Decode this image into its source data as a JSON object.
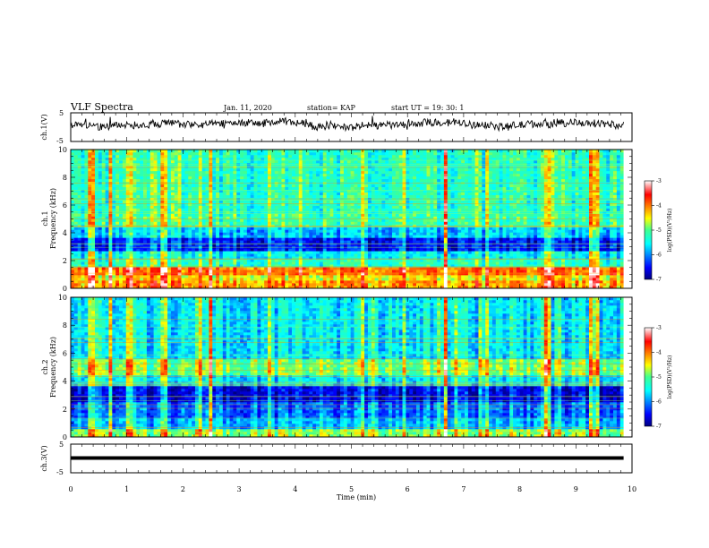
{
  "header": {
    "title": "VLF Spectra",
    "date": "Jan. 11, 2020",
    "station": "station= KAP",
    "start": "start UT =  19: 30: 1"
  },
  "chart_data": [
    {
      "type": "line",
      "name": "ch1-waveform",
      "ylabel": "ch.1(V)",
      "xlim": [
        0,
        10
      ],
      "ylim": [
        -5,
        5
      ],
      "yticks": [
        "5",
        "-5"
      ],
      "x_end": 9.85,
      "description_level": "noisy broadband waveform, approx. 0 to 2 V mean, peaks near 5 V"
    },
    {
      "type": "heatmap",
      "name": "ch1-spectrogram",
      "ylabel": "Frequency (kHz)",
      "ylabel_prefix": "ch.1",
      "xlim": [
        0,
        9.85
      ],
      "ylim": [
        0,
        10
      ],
      "yticks": [
        "0",
        "2",
        "4",
        "6",
        "8",
        "10"
      ],
      "colorbar": {
        "label": "log(PSD)(V²/Hz)",
        "range": [
          -7,
          -3
        ],
        "ticks": [
          "-3",
          "-4",
          "-5",
          "-6",
          "-7"
        ]
      },
      "bands": [
        {
          "f": [
            0,
            0.5
          ],
          "level": -4.2
        },
        {
          "f": [
            0.5,
            1.0
          ],
          "level": -4.5
        },
        {
          "f": [
            1.0,
            1.6
          ],
          "level": -4.0
        },
        {
          "f": [
            1.6,
            2.2
          ],
          "level": -5.3
        },
        {
          "f": [
            2.2,
            2.6
          ],
          "level": -5.6
        },
        {
          "f": [
            2.6,
            3.6
          ],
          "level": -6.5
        },
        {
          "f": [
            3.6,
            4.4
          ],
          "level": -5.8
        },
        {
          "f": [
            4.4,
            5.4
          ],
          "level": -5.2
        },
        {
          "f": [
            5.4,
            10
          ],
          "level": -5.3
        }
      ],
      "strong_events_min": [
        0.37,
        0.7,
        1.05,
        1.66,
        2.33,
        2.5,
        3.55,
        5.2,
        6.7,
        7.4,
        8.5,
        9.3,
        9.4
      ]
    },
    {
      "type": "heatmap",
      "name": "ch2-spectrogram",
      "ylabel": "Frequency (kHz)",
      "ylabel_prefix": "ch.2",
      "xlim": [
        0,
        9.85
      ],
      "ylim": [
        0,
        10
      ],
      "yticks": [
        "0",
        "2",
        "4",
        "6",
        "8",
        "10"
      ],
      "colorbar": {
        "label": "log(PSD)(V²/Hz)",
        "range": [
          -7,
          -3
        ],
        "ticks": [
          "-3",
          "-4",
          "-5",
          "-6",
          "-7"
        ]
      },
      "bands": [
        {
          "f": [
            0,
            0.6
          ],
          "level": -4.8
        },
        {
          "f": [
            0.6,
            1.4
          ],
          "level": -5.8
        },
        {
          "f": [
            1.4,
            2.5
          ],
          "level": -6.1
        },
        {
          "f": [
            2.5,
            3.6
          ],
          "level": -6.6
        },
        {
          "f": [
            3.6,
            4.4
          ],
          "level": -5.6
        },
        {
          "f": [
            4.4,
            5.6
          ],
          "level": -4.9
        },
        {
          "f": [
            5.6,
            10
          ],
          "level": -5.6
        }
      ],
      "strong_events_min": [
        0.37,
        0.7,
        1.05,
        1.66,
        2.33,
        2.5,
        3.55,
        5.2,
        6.7,
        7.4,
        8.5,
        9.3,
        9.4
      ]
    },
    {
      "type": "line",
      "name": "ch3-waveform",
      "ylabel": "ch.3(V)",
      "xlim": [
        0,
        10
      ],
      "ylim": [
        -5,
        5
      ],
      "yticks": [
        "5",
        "-5"
      ],
      "y_value": 0,
      "x_end": 9.85
    }
  ],
  "xaxis": {
    "label": "Time (min)",
    "ticks": [
      "0",
      "1",
      "2",
      "3",
      "4",
      "5",
      "6",
      "7",
      "8",
      "9",
      "10"
    ]
  },
  "colors": {
    "trace": "#000000",
    "frame": "#000000",
    "background": "#ffffff"
  }
}
